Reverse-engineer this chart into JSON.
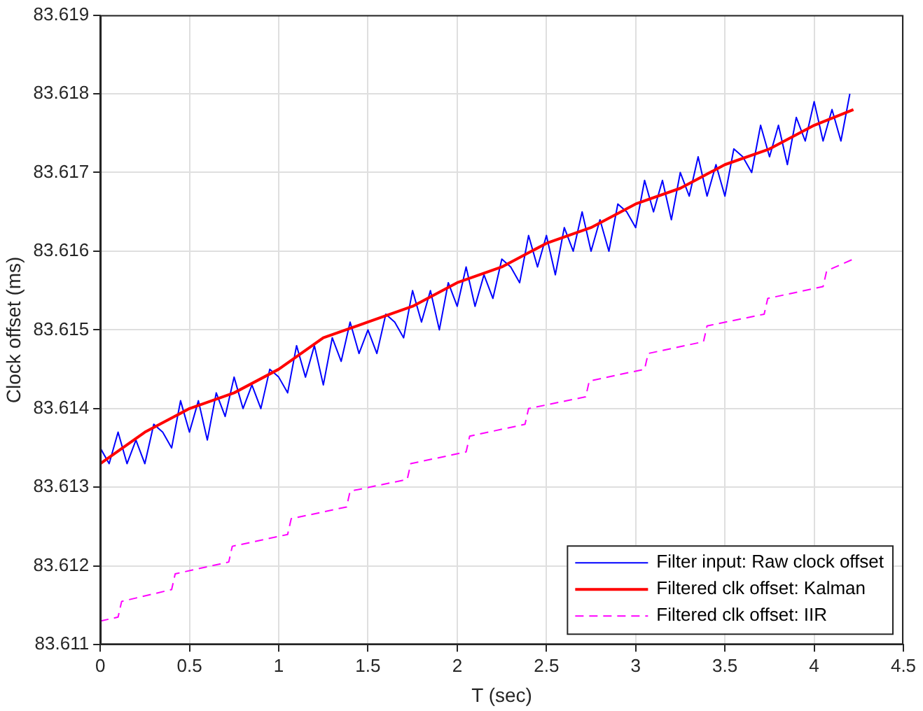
{
  "chart_data": {
    "type": "line",
    "xlabel": "T (sec)",
    "ylabel": "Clock offset (ms)",
    "xlim": [
      0,
      4.5
    ],
    "xticks": [
      0,
      0.5,
      1,
      1.5,
      2,
      2.5,
      3,
      3.5,
      4,
      4.5
    ],
    "ylim": [
      83.611,
      83.619
    ],
    "yticks": [
      83.611,
      83.612,
      83.613,
      83.614,
      83.615,
      83.616,
      83.617,
      83.618,
      83.619
    ],
    "grid": true,
    "legend": "bottom right",
    "marker": "none",
    "series": [
      {
        "name": "Filter input: Raw clock offset",
        "color": "#0000ff",
        "line_style": "solid",
        "x": [
          0,
          0.05,
          0.1,
          0.15,
          0.2,
          0.25,
          0.3,
          0.35,
          0.4,
          0.45,
          0.5,
          0.55,
          0.6,
          0.65,
          0.7,
          0.75,
          0.8,
          0.85,
          0.9,
          0.95,
          1,
          1.05,
          1.1,
          1.15,
          1.2,
          1.25,
          1.3,
          1.35,
          1.4,
          1.45,
          1.5,
          1.55,
          1.6,
          1.65,
          1.7,
          1.75,
          1.8,
          1.85,
          1.9,
          1.95,
          2,
          2.05,
          2.1,
          2.15,
          2.2,
          2.25,
          2.3,
          2.35,
          2.4,
          2.45,
          2.5,
          2.55,
          2.6,
          2.65,
          2.7,
          2.75,
          2.8,
          2.85,
          2.9,
          2.95,
          3,
          3.05,
          3.1,
          3.15,
          3.2,
          3.25,
          3.3,
          3.35,
          3.4,
          3.45,
          3.5,
          3.55,
          3.6,
          3.65,
          3.7,
          3.75,
          3.8,
          3.85,
          3.9,
          3.95,
          4,
          4.05,
          4.1,
          4.15,
          4.2
        ],
        "values": [
          83.6135,
          83.6133,
          83.6137,
          83.6133,
          83.6136,
          83.6133,
          83.6138,
          83.6137,
          83.6135,
          83.6141,
          83.6137,
          83.6141,
          83.6136,
          83.6142,
          83.6139,
          83.6144,
          83.614,
          83.6143,
          83.614,
          83.6145,
          83.6144,
          83.6142,
          83.6148,
          83.6144,
          83.6148,
          83.6143,
          83.6149,
          83.6146,
          83.6151,
          83.6147,
          83.615,
          83.6147,
          83.6152,
          83.6151,
          83.6149,
          83.6155,
          83.6151,
          83.6155,
          83.615,
          83.6156,
          83.6153,
          83.6158,
          83.6153,
          83.6157,
          83.6154,
          83.6159,
          83.6158,
          83.6156,
          83.6162,
          83.6158,
          83.6162,
          83.6157,
          83.6163,
          83.616,
          83.6165,
          83.616,
          83.6164,
          83.616,
          83.6166,
          83.6165,
          83.6163,
          83.6169,
          83.6165,
          83.6169,
          83.6164,
          83.617,
          83.6167,
          83.6172,
          83.6167,
          83.6171,
          83.6167,
          83.6173,
          83.6172,
          83.617,
          83.6176,
          83.6172,
          83.6176,
          83.6171,
          83.6177,
          83.6174,
          83.6179,
          83.6174,
          83.6178,
          83.6174,
          83.618
        ]
      },
      {
        "name": "Filtered clk offset: Kalman",
        "color": "#ff0000",
        "line_style": "solid",
        "x": [
          0,
          0.25,
          0.5,
          0.75,
          1,
          1.25,
          1.5,
          1.75,
          2,
          2.25,
          2.5,
          2.75,
          3,
          3.25,
          3.5,
          3.75,
          4,
          4.22
        ],
        "values": [
          83.6133,
          83.6137,
          83.614,
          83.6142,
          83.6145,
          83.6149,
          83.6151,
          83.6153,
          83.6156,
          83.6158,
          83.6161,
          83.6163,
          83.6166,
          83.6168,
          83.6171,
          83.6173,
          83.6176,
          83.6178
        ]
      },
      {
        "name": "Filtered clk offset: IIR",
        "color": "#ff00ff",
        "line_style": "dashed",
        "x": [
          0,
          0.1,
          0.12,
          0.4,
          0.42,
          0.72,
          0.74,
          1.05,
          1.07,
          1.38,
          1.4,
          1.72,
          1.74,
          2.05,
          2.07,
          2.38,
          2.4,
          2.72,
          2.74,
          3.05,
          3.07,
          3.38,
          3.4,
          3.72,
          3.74,
          4.05,
          4.07,
          4.22
        ],
        "values": [
          83.6113,
          83.61135,
          83.61155,
          83.6117,
          83.6119,
          83.61205,
          83.61225,
          83.6124,
          83.6126,
          83.61275,
          83.61295,
          83.6131,
          83.6133,
          83.61345,
          83.61365,
          83.6138,
          83.614,
          83.61415,
          83.61435,
          83.6145,
          83.6147,
          83.61485,
          83.61505,
          83.6152,
          83.6154,
          83.61555,
          83.61575,
          83.6159
        ]
      }
    ]
  }
}
